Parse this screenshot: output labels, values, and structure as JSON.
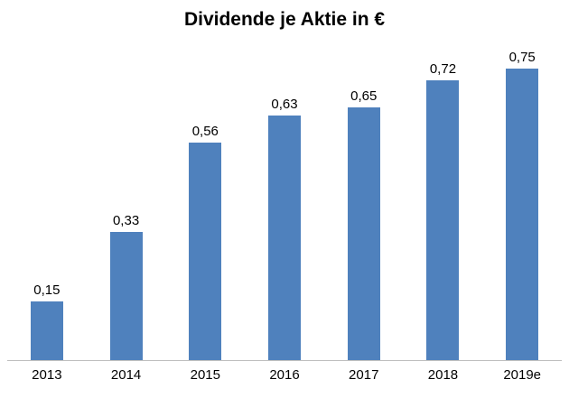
{
  "chart_data": {
    "type": "bar",
    "title": "Dividende je Aktie in €",
    "categories": [
      "2013",
      "2014",
      "2015",
      "2016",
      "2017",
      "2018",
      "2019e"
    ],
    "values": [
      0.15,
      0.33,
      0.56,
      0.63,
      0.65,
      0.72,
      0.75
    ],
    "value_labels": [
      "0,15",
      "0,33",
      "0,56",
      "0,63",
      "0,65",
      "0,72",
      "0,75"
    ],
    "xlabel": "",
    "ylabel": "",
    "ylim": [
      0,
      0.81
    ],
    "grid": false,
    "legend_position": "none",
    "bar_color": "#4F81BD",
    "axis_line_color": "#BFBFBF",
    "text_color": "#000000"
  }
}
